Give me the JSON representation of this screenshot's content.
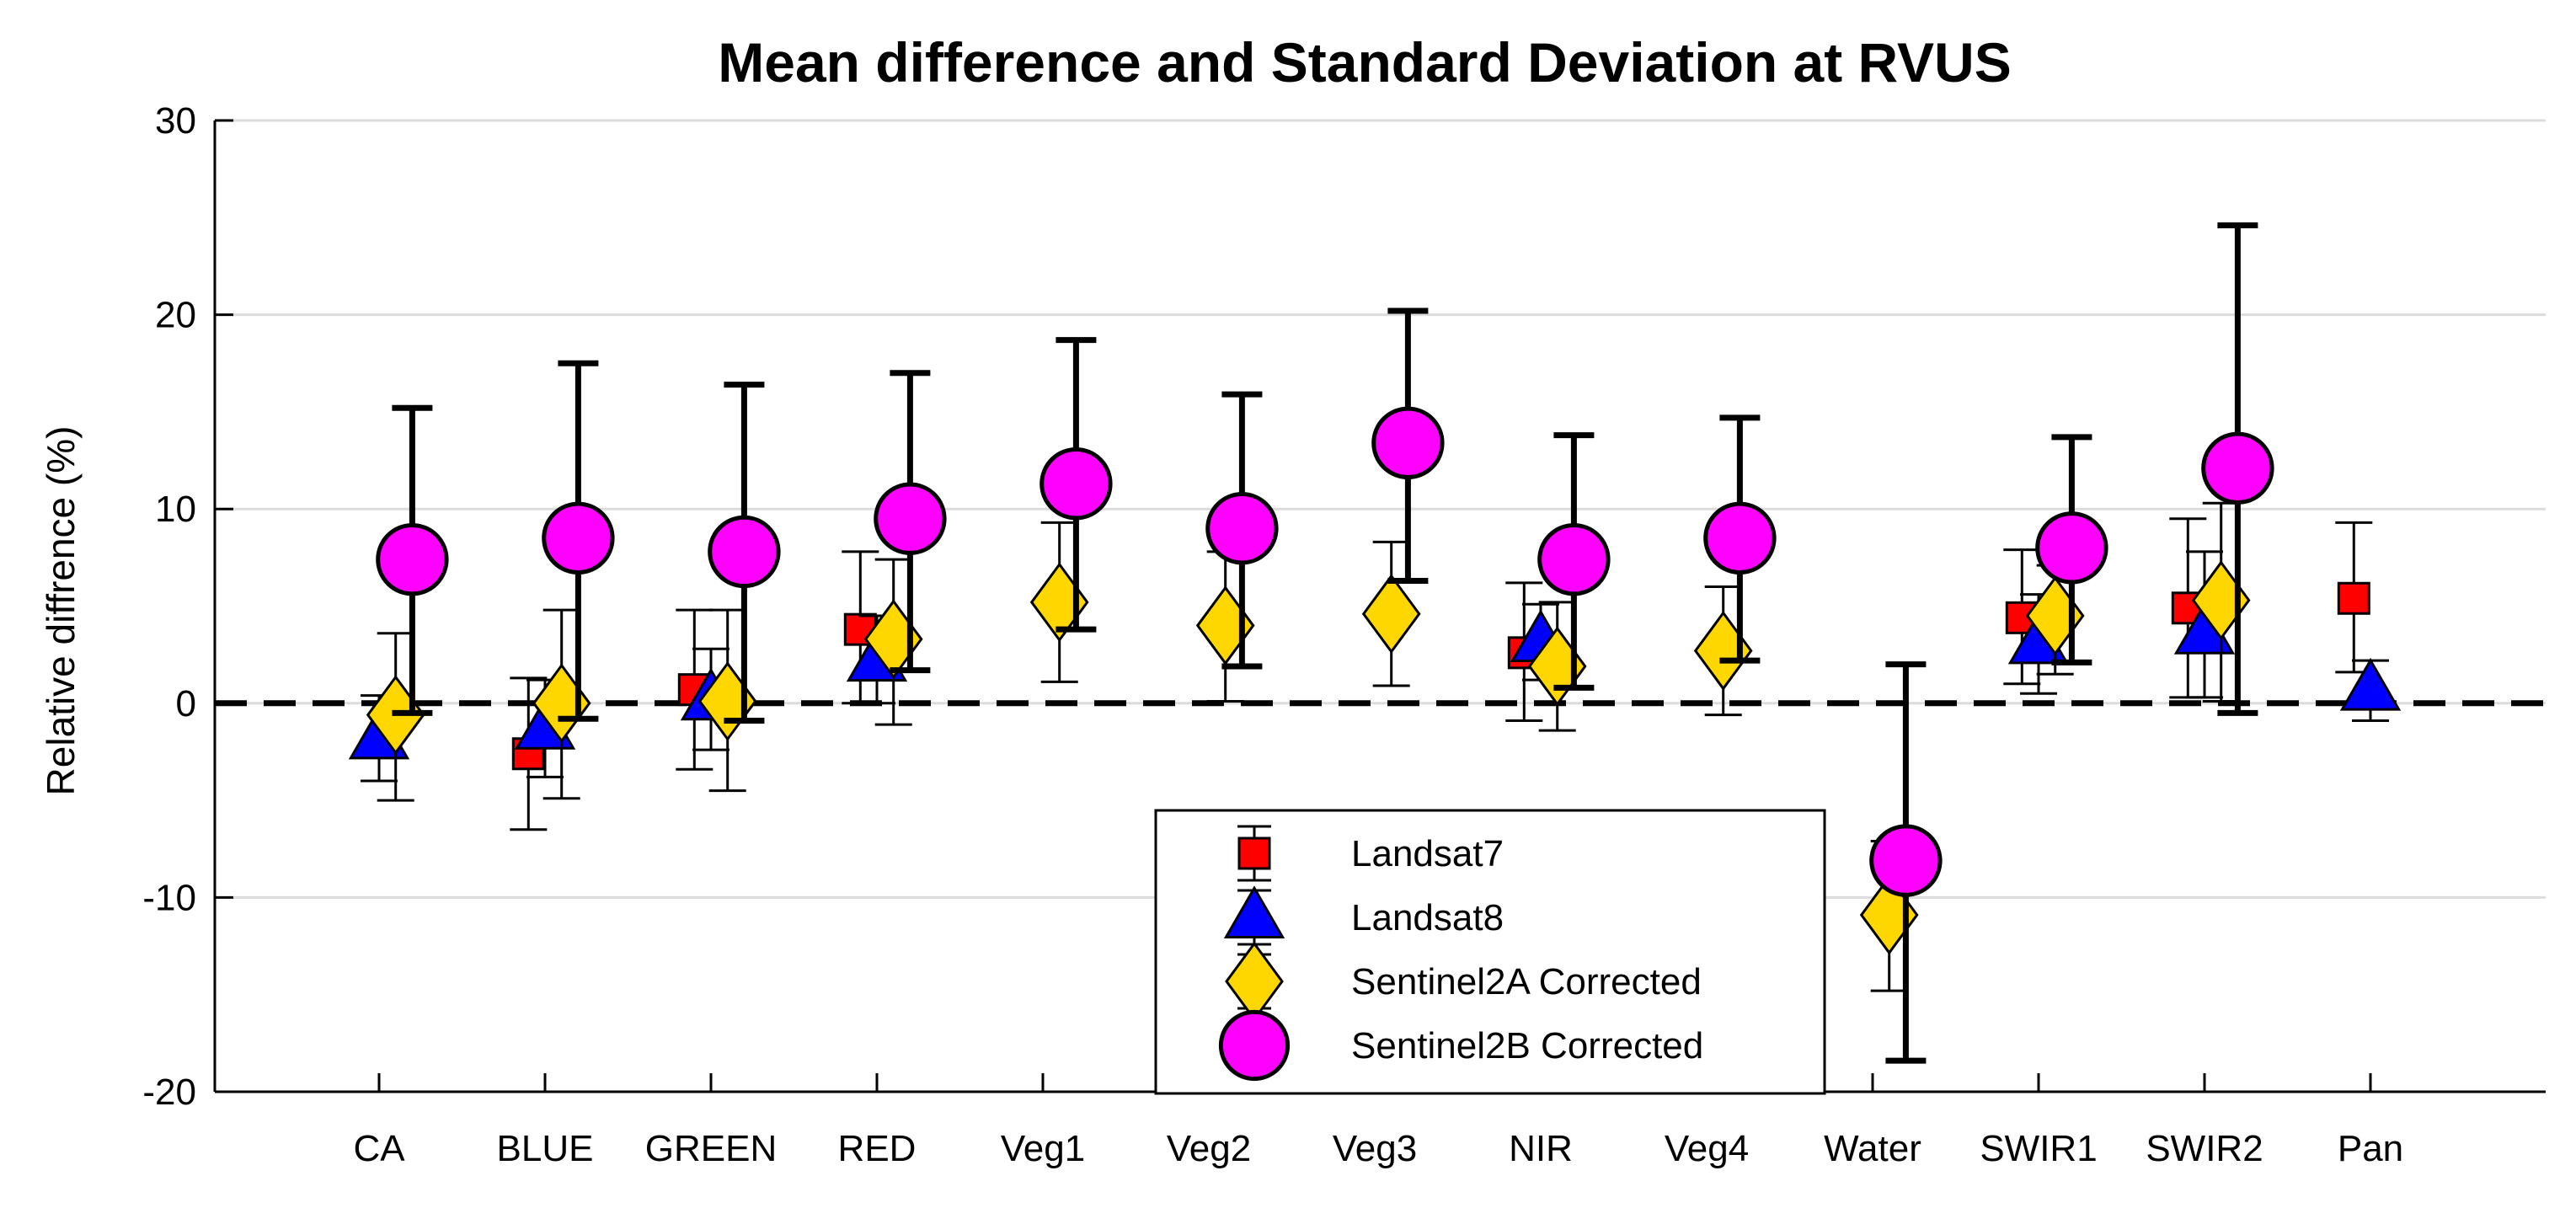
{
  "chart_data": {
    "type": "errorbar",
    "title": "Mean difference and Standard Deviation at RVUS",
    "xlabel": "",
    "ylabel": "Relative diffrence (%)",
    "ylim": [
      -20,
      30
    ],
    "yticks": [
      -20,
      -10,
      0,
      10,
      20,
      30
    ],
    "grid": true,
    "reference_line": 0,
    "categories": [
      "CA",
      "BLUE",
      "GREEN",
      "RED",
      "Veg1",
      "Veg2",
      "Veg3",
      "NIR",
      "Veg4",
      "Water",
      "SWIR1",
      "SWIR2",
      "Pan"
    ],
    "series": [
      {
        "name": "Landsat7",
        "marker": "square",
        "color": "#ff0000",
        "offset": -0.1,
        "points": [
          {
            "cat": "BLUE",
            "mean": -2.6,
            "low": -6.5,
            "high": 1.3
          },
          {
            "cat": "GREEN",
            "mean": 0.7,
            "low": -3.4,
            "high": 4.8
          },
          {
            "cat": "RED",
            "mean": 3.8,
            "low": 0,
            "high": 7.8
          },
          {
            "cat": "NIR",
            "mean": 2.6,
            "low": -0.9,
            "high": 6.2
          },
          {
            "cat": "SWIR1",
            "mean": 4.4,
            "low": 1.0,
            "high": 7.9
          },
          {
            "cat": "SWIR2",
            "mean": 4.9,
            "low": 0.3,
            "high": 9.5
          },
          {
            "cat": "Pan",
            "mean": 5.4,
            "low": 1.6,
            "high": 9.3
          }
        ]
      },
      {
        "name": "Landsat8",
        "marker": "triangle",
        "color": "#0000ff",
        "offset": 0.0,
        "points": [
          {
            "cat": "CA",
            "mean": -1.8,
            "low": -4.0,
            "high": 0.4
          },
          {
            "cat": "BLUE",
            "mean": -1.3,
            "low": -3.8,
            "high": 1.2
          },
          {
            "cat": "GREEN",
            "mean": 0.2,
            "low": -2.4,
            "high": 2.8
          },
          {
            "cat": "RED",
            "mean": 2.2,
            "low": 0,
            "high": 4.5
          },
          {
            "cat": "NIR",
            "mean": 3.2,
            "low": 1.2,
            "high": 5.1
          },
          {
            "cat": "SWIR1",
            "mean": 3.1,
            "low": 0.5,
            "high": 5.6
          },
          {
            "cat": "SWIR2",
            "mean": 3.6,
            "low": 0.3,
            "high": 7.8
          },
          {
            "cat": "Pan",
            "mean": 0.7,
            "low": -0.9,
            "high": 2.2
          }
        ]
      },
      {
        "name": "Sentinel2A Corrected",
        "marker": "diamond",
        "color": "#ffd700",
        "offset": 0.1,
        "points": [
          {
            "cat": "CA",
            "mean": -0.6,
            "low": -5.0,
            "high": 3.6
          },
          {
            "cat": "BLUE",
            "mean": 0.0,
            "low": -4.9,
            "high": 4.8
          },
          {
            "cat": "GREEN",
            "mean": 0.1,
            "low": -4.5,
            "high": 4.8
          },
          {
            "cat": "RED",
            "mean": 3.3,
            "low": -1.1,
            "high": 7.4
          },
          {
            "cat": "Veg1",
            "mean": 5.2,
            "low": 1.1,
            "high": 9.3
          },
          {
            "cat": "Veg2",
            "mean": 4.0,
            "low": 0.1,
            "high": 7.8
          },
          {
            "cat": "Veg3",
            "mean": 4.6,
            "low": 0.9,
            "high": 8.3
          },
          {
            "cat": "NIR",
            "mean": 1.9,
            "low": -1.4,
            "high": 5.2
          },
          {
            "cat": "Veg4",
            "mean": 2.7,
            "low": -0.6,
            "high": 6.0
          },
          {
            "cat": "Water",
            "mean": -10.9,
            "low": -14.8,
            "high": -7.1
          },
          {
            "cat": "SWIR1",
            "mean": 4.5,
            "low": 1.5,
            "high": 7.1
          },
          {
            "cat": "SWIR2",
            "mean": 5.3,
            "low": 0.1,
            "high": 10.3
          }
        ]
      },
      {
        "name": "Sentinel2B Corrected",
        "marker": "circle",
        "color": "#ff00ff",
        "offset": 0.2,
        "points": [
          {
            "cat": "CA",
            "mean": 7.4,
            "low": -0.5,
            "high": 15.2
          },
          {
            "cat": "BLUE",
            "mean": 8.5,
            "low": -0.8,
            "high": 17.5
          },
          {
            "cat": "GREEN",
            "mean": 7.8,
            "low": -0.9,
            "high": 16.4
          },
          {
            "cat": "RED",
            "mean": 9.5,
            "low": 1.7,
            "high": 17.0
          },
          {
            "cat": "Veg1",
            "mean": 11.3,
            "low": 3.8,
            "high": 18.7
          },
          {
            "cat": "Veg2",
            "mean": 9.0,
            "low": 1.9,
            "high": 15.9
          },
          {
            "cat": "Veg3",
            "mean": 13.4,
            "low": 6.3,
            "high": 20.2
          },
          {
            "cat": "NIR",
            "mean": 7.4,
            "low": 0.8,
            "high": 13.8
          },
          {
            "cat": "Veg4",
            "mean": 8.5,
            "low": 2.2,
            "high": 14.7
          },
          {
            "cat": "Water",
            "mean": -8.1,
            "low": -18.4,
            "high": 2.0
          },
          {
            "cat": "SWIR1",
            "mean": 8.0,
            "low": 2.1,
            "high": 13.7
          },
          {
            "cat": "SWIR2",
            "mean": 12.1,
            "low": -0.5,
            "high": 24.6
          }
        ]
      }
    ],
    "legend": {
      "position": "bottom-center",
      "entries": [
        "Landsat7",
        "Landsat8",
        "Sentinel2A Corrected",
        "Sentinel2B Corrected"
      ]
    }
  }
}
